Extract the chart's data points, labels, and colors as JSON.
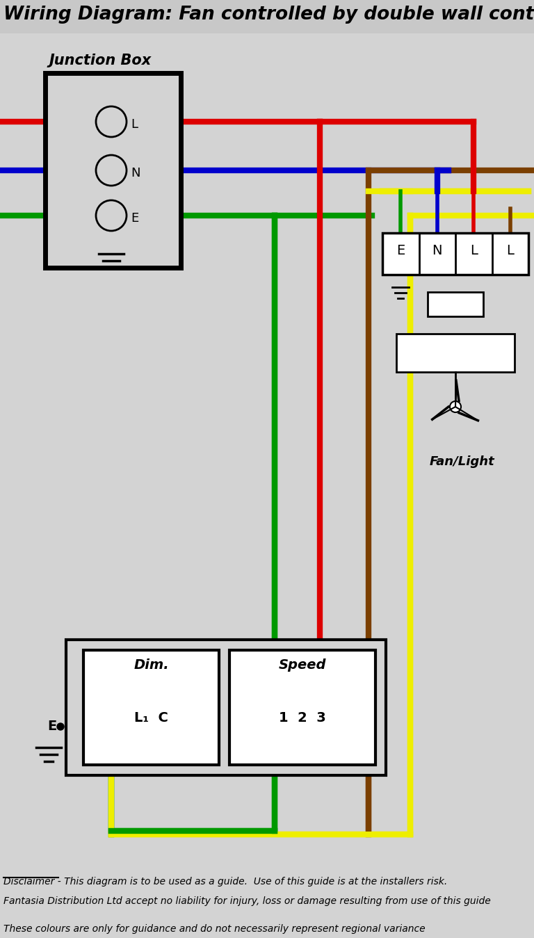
{
  "title": "Wiring Diagram: Fan controlled by double wall control",
  "bg_color": "#d3d3d3",
  "disclaimer1": "Disclaimer - This diagram is to be used as a guide.  Use of this guide is at the installers risk.",
  "disclaimer2": "Fantasia Distribution Ltd accept no liability for injury, loss or damage resulting from use of this guide",
  "disclaimer3": "These colours are only for guidance and do not necessarily represent regional variance",
  "wire_red": "#dd0000",
  "wire_blue": "#0000cc",
  "wire_green": "#009900",
  "wire_yellow": "#eeee00",
  "wire_brown": "#7b3f00",
  "wire_black": "#000000",
  "wire_white": "#ffffff",
  "lw": 6
}
